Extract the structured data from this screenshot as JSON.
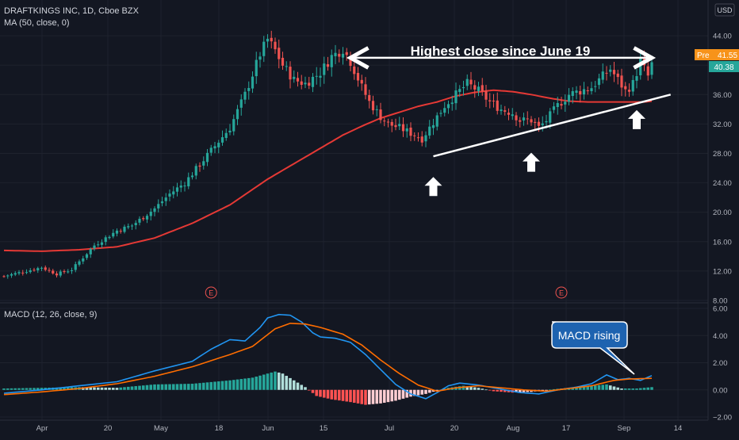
{
  "header": {
    "symbol_line": "DRAFTKINGS INC, 1D, Cboe BZX",
    "ma_label": "MA (50, close, 0)",
    "currency_button": "USD"
  },
  "colors": {
    "background": "#131722",
    "grid": "#1e222d",
    "up": "#26a69a",
    "down": "#ef5350",
    "ma": "#e53935",
    "macd": "#2196f3",
    "signal": "#ff6d00",
    "axis_text": "#b2b5be",
    "annotation": "#ffffff",
    "pre_badge": "#f7931a",
    "last_badge": "#26a69a",
    "callout": "#1e63b0"
  },
  "price_badges": [
    {
      "tag": "Pre",
      "value": "41.55"
    },
    {
      "tag": "",
      "value": "40.38"
    }
  ],
  "annotations": {
    "headline": "Highest close since June 19",
    "macd_callout": "MACD rising",
    "earnings_marker": "E"
  },
  "chart_data": [
    {
      "type": "candlestick",
      "title": "DRAFTKINGS INC, 1D, Cboe BZX",
      "ylim": [
        8,
        48
      ],
      "y_ticks": [
        "44.00",
        "40.00",
        "36.00",
        "32.00",
        "28.00",
        "24.00",
        "20.00",
        "16.00",
        "12.00",
        "8.00"
      ],
      "x_ticks": [
        "Apr",
        "20",
        "May",
        "18",
        "Jun",
        "15",
        "Jul",
        "20",
        "Aug",
        "17",
        "Sep",
        "14"
      ],
      "close_anchors": [
        [
          0,
          11.3
        ],
        [
          10,
          12.5
        ],
        [
          14,
          11.6
        ],
        [
          18,
          12.2
        ],
        [
          24,
          15.5
        ],
        [
          30,
          17.5
        ],
        [
          34,
          18.2
        ],
        [
          40,
          20.5
        ],
        [
          44,
          22.5
        ],
        [
          48,
          24.0
        ],
        [
          52,
          26.5
        ],
        [
          56,
          29.0
        ],
        [
          60,
          31.5
        ],
        [
          64,
          36.0
        ],
        [
          68,
          41.5
        ],
        [
          70,
          43.5
        ],
        [
          72,
          42.0
        ],
        [
          74,
          40.0
        ],
        [
          77,
          38.0
        ],
        [
          80,
          37.5
        ],
        [
          84,
          39.0
        ],
        [
          87,
          41.2
        ],
        [
          90,
          42.2
        ],
        [
          92,
          40.5
        ],
        [
          95,
          37.0
        ],
        [
          97,
          35.0
        ],
        [
          100,
          33.0
        ],
        [
          102,
          32.0
        ],
        [
          105,
          31.5
        ],
        [
          107,
          31.0
        ],
        [
          109,
          30.5
        ],
        [
          111,
          30.0
        ],
        [
          113,
          31.5
        ],
        [
          115,
          33.0
        ],
        [
          117,
          34.5
        ],
        [
          120,
          36.0
        ],
        [
          123,
          37.5
        ],
        [
          126,
          36.5
        ],
        [
          129,
          35.0
        ],
        [
          132,
          34.0
        ],
        [
          135,
          33.5
        ],
        [
          137,
          32.5
        ],
        [
          140,
          32.5
        ],
        [
          142,
          31.5
        ],
        [
          144,
          32.5
        ],
        [
          147,
          34.5
        ],
        [
          150,
          36.0
        ],
        [
          153,
          36.5
        ],
        [
          156,
          37.0
        ],
        [
          159,
          38.5
        ],
        [
          161,
          39.5
        ],
        [
          163,
          38.0
        ],
        [
          165,
          36.5
        ],
        [
          167,
          37.5
        ],
        [
          169,
          40.5
        ],
        [
          171,
          38.5
        ],
        [
          172,
          40.4
        ]
      ],
      "series": [
        {
          "name": "MA (50, close, 0)",
          "points": [
            [
              0,
              14.8
            ],
            [
              10,
              14.7
            ],
            [
              20,
              14.9
            ],
            [
              30,
              15.3
            ],
            [
              40,
              16.5
            ],
            [
              50,
              18.5
            ],
            [
              60,
              21.0
            ],
            [
              70,
              24.5
            ],
            [
              80,
              27.5
            ],
            [
              90,
              30.5
            ],
            [
              95,
              31.7
            ],
            [
              100,
              32.8
            ],
            [
              105,
              33.6
            ],
            [
              110,
              34.4
            ],
            [
              115,
              35.0
            ],
            [
              120,
              35.8
            ],
            [
              125,
              36.3
            ],
            [
              130,
              36.6
            ],
            [
              135,
              36.4
            ],
            [
              140,
              36.0
            ],
            [
              145,
              35.5
            ],
            [
              150,
              35.1
            ],
            [
              155,
              35.0
            ],
            [
              160,
              35.0
            ],
            [
              165,
              35.0
            ],
            [
              170,
              35.0
            ],
            [
              172,
              35.1
            ]
          ]
        }
      ],
      "earnings_markers": [
        55,
        148
      ],
      "resistance_line": {
        "from": [
          92,
          41.0
        ],
        "to": [
          172,
          41.0
        ]
      },
      "support_line": {
        "from": [
          114,
          27.6
        ],
        "to": [
          177,
          36.0
        ]
      },
      "up_arrows": [
        [
          114,
          23.5
        ],
        [
          140,
          26.8
        ],
        [
          168,
          32.6
        ]
      ]
    },
    {
      "type": "macd",
      "title": "MACD (12, 26, close, 9)",
      "ylim": [
        -2.0,
        6.0
      ],
      "y_ticks": [
        "6.00",
        "4.00",
        "2.00",
        "0.00",
        "−2.00"
      ],
      "series": [
        {
          "name": "MACD",
          "points": [
            [
              0,
              -0.25
            ],
            [
              10,
              0.0
            ],
            [
              20,
              0.3
            ],
            [
              30,
              0.6
            ],
            [
              40,
              1.4
            ],
            [
              50,
              2.1
            ],
            [
              55,
              3.0
            ],
            [
              60,
              3.7
            ],
            [
              64,
              3.6
            ],
            [
              68,
              4.6
            ],
            [
              70,
              5.3
            ],
            [
              73,
              5.55
            ],
            [
              76,
              5.5
            ],
            [
              79,
              5.0
            ],
            [
              82,
              4.2
            ],
            [
              84,
              3.9
            ],
            [
              88,
              3.8
            ],
            [
              92,
              3.5
            ],
            [
              96,
              2.6
            ],
            [
              100,
              1.5
            ],
            [
              104,
              0.4
            ],
            [
              108,
              -0.3
            ],
            [
              112,
              -0.65
            ],
            [
              115,
              -0.2
            ],
            [
              118,
              0.3
            ],
            [
              121,
              0.5
            ],
            [
              126,
              0.35
            ],
            [
              132,
              0.05
            ],
            [
              137,
              -0.2
            ],
            [
              142,
              -0.3
            ],
            [
              147,
              0.0
            ],
            [
              152,
              0.2
            ],
            [
              156,
              0.45
            ],
            [
              160,
              1.1
            ],
            [
              163,
              0.75
            ],
            [
              166,
              0.85
            ],
            [
              169,
              0.7
            ],
            [
              172,
              1.05
            ]
          ]
        },
        {
          "name": "Signal",
          "points": [
            [
              0,
              -0.35
            ],
            [
              10,
              -0.15
            ],
            [
              20,
              0.1
            ],
            [
              30,
              0.45
            ],
            [
              40,
              1.0
            ],
            [
              50,
              1.7
            ],
            [
              60,
              2.6
            ],
            [
              66,
              3.2
            ],
            [
              72,
              4.5
            ],
            [
              76,
              4.9
            ],
            [
              80,
              4.85
            ],
            [
              84,
              4.6
            ],
            [
              90,
              4.1
            ],
            [
              95,
              3.3
            ],
            [
              100,
              2.2
            ],
            [
              105,
              1.2
            ],
            [
              110,
              0.35
            ],
            [
              115,
              -0.1
            ],
            [
              120,
              0.15
            ],
            [
              126,
              0.3
            ],
            [
              132,
              0.15
            ],
            [
              138,
              0.0
            ],
            [
              144,
              -0.1
            ],
            [
              150,
              0.1
            ],
            [
              156,
              0.3
            ],
            [
              162,
              0.7
            ],
            [
              166,
              0.8
            ],
            [
              172,
              0.85
            ]
          ]
        }
      ],
      "histogram_anchors": [
        [
          0,
          0.1
        ],
        [
          20,
          0.2
        ],
        [
          30,
          0.15
        ],
        [
          40,
          0.4
        ],
        [
          50,
          0.45
        ],
        [
          60,
          0.7
        ],
        [
          66,
          0.9
        ],
        [
          70,
          1.2
        ],
        [
          72,
          1.35
        ],
        [
          74,
          1.2
        ],
        [
          77,
          0.7
        ],
        [
          80,
          0.2
        ],
        [
          83,
          -0.45
        ],
        [
          87,
          -0.7
        ],
        [
          92,
          -0.9
        ],
        [
          96,
          -1.1
        ],
        [
          100,
          -1.0
        ],
        [
          104,
          -0.8
        ],
        [
          108,
          -0.5
        ],
        [
          112,
          -0.3
        ],
        [
          115,
          -0.05
        ],
        [
          118,
          0.15
        ],
        [
          122,
          0.3
        ],
        [
          126,
          0.15
        ],
        [
          130,
          -0.1
        ],
        [
          135,
          -0.2
        ],
        [
          140,
          -0.15
        ],
        [
          146,
          0.05
        ],
        [
          150,
          0.15
        ],
        [
          156,
          0.3
        ],
        [
          160,
          0.4
        ],
        [
          164,
          0.1
        ],
        [
          168,
          0.1
        ],
        [
          172,
          0.2
        ]
      ]
    }
  ]
}
